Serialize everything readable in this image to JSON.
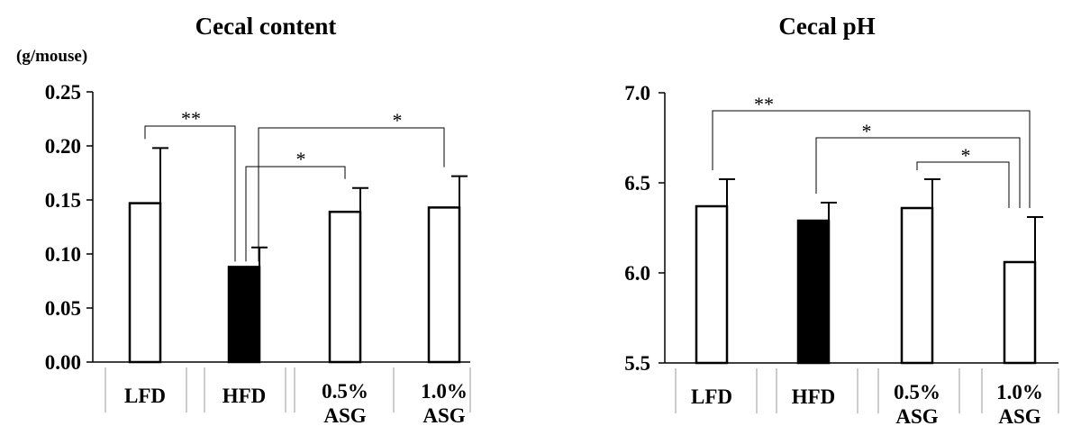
{
  "chart_data": [
    {
      "type": "bar",
      "title": "Cecal content",
      "ylabel": "(g/mouse)",
      "ylim": [
        0,
        0.25
      ],
      "yticks": [
        "0.00",
        "0.05",
        "0.10",
        "0.15",
        "0.20",
        "0.25"
      ],
      "categories": [
        [
          "LFD"
        ],
        [
          "HFD"
        ],
        [
          "0.5%",
          "ASG"
        ],
        [
          "1.0%",
          "ASG"
        ]
      ],
      "values": [
        0.147,
        0.088,
        0.139,
        0.143
      ],
      "errors": [
        0.051,
        0.018,
        0.022,
        0.029
      ],
      "fills": [
        "#ffffff",
        "#000000",
        "#ffffff",
        "#ffffff"
      ],
      "significance": [
        {
          "pair": [
            0,
            1
          ],
          "label": "**"
        },
        {
          "pair": [
            1,
            2
          ],
          "label": "*"
        },
        {
          "pair": [
            1,
            3
          ],
          "label": "*"
        }
      ]
    },
    {
      "type": "bar",
      "title": "Cecal pH",
      "ylabel": "",
      "ylim": [
        5.5,
        7.0
      ],
      "yticks": [
        "5.5",
        "6.0",
        "6.5",
        "7.0"
      ],
      "categories": [
        [
          "LFD"
        ],
        [
          "HFD"
        ],
        [
          "0.5%",
          "ASG"
        ],
        [
          "1.0%",
          "ASG"
        ]
      ],
      "values": [
        6.37,
        6.29,
        6.36,
        6.06
      ],
      "errors": [
        0.15,
        0.1,
        0.16,
        0.25
      ],
      "fills": [
        "#ffffff",
        "#000000",
        "#ffffff",
        "#ffffff"
      ],
      "significance": [
        {
          "pair": [
            0,
            3
          ],
          "label": "**"
        },
        {
          "pair": [
            1,
            3
          ],
          "label": "*"
        },
        {
          "pair": [
            2,
            3
          ],
          "label": "*"
        }
      ]
    }
  ]
}
